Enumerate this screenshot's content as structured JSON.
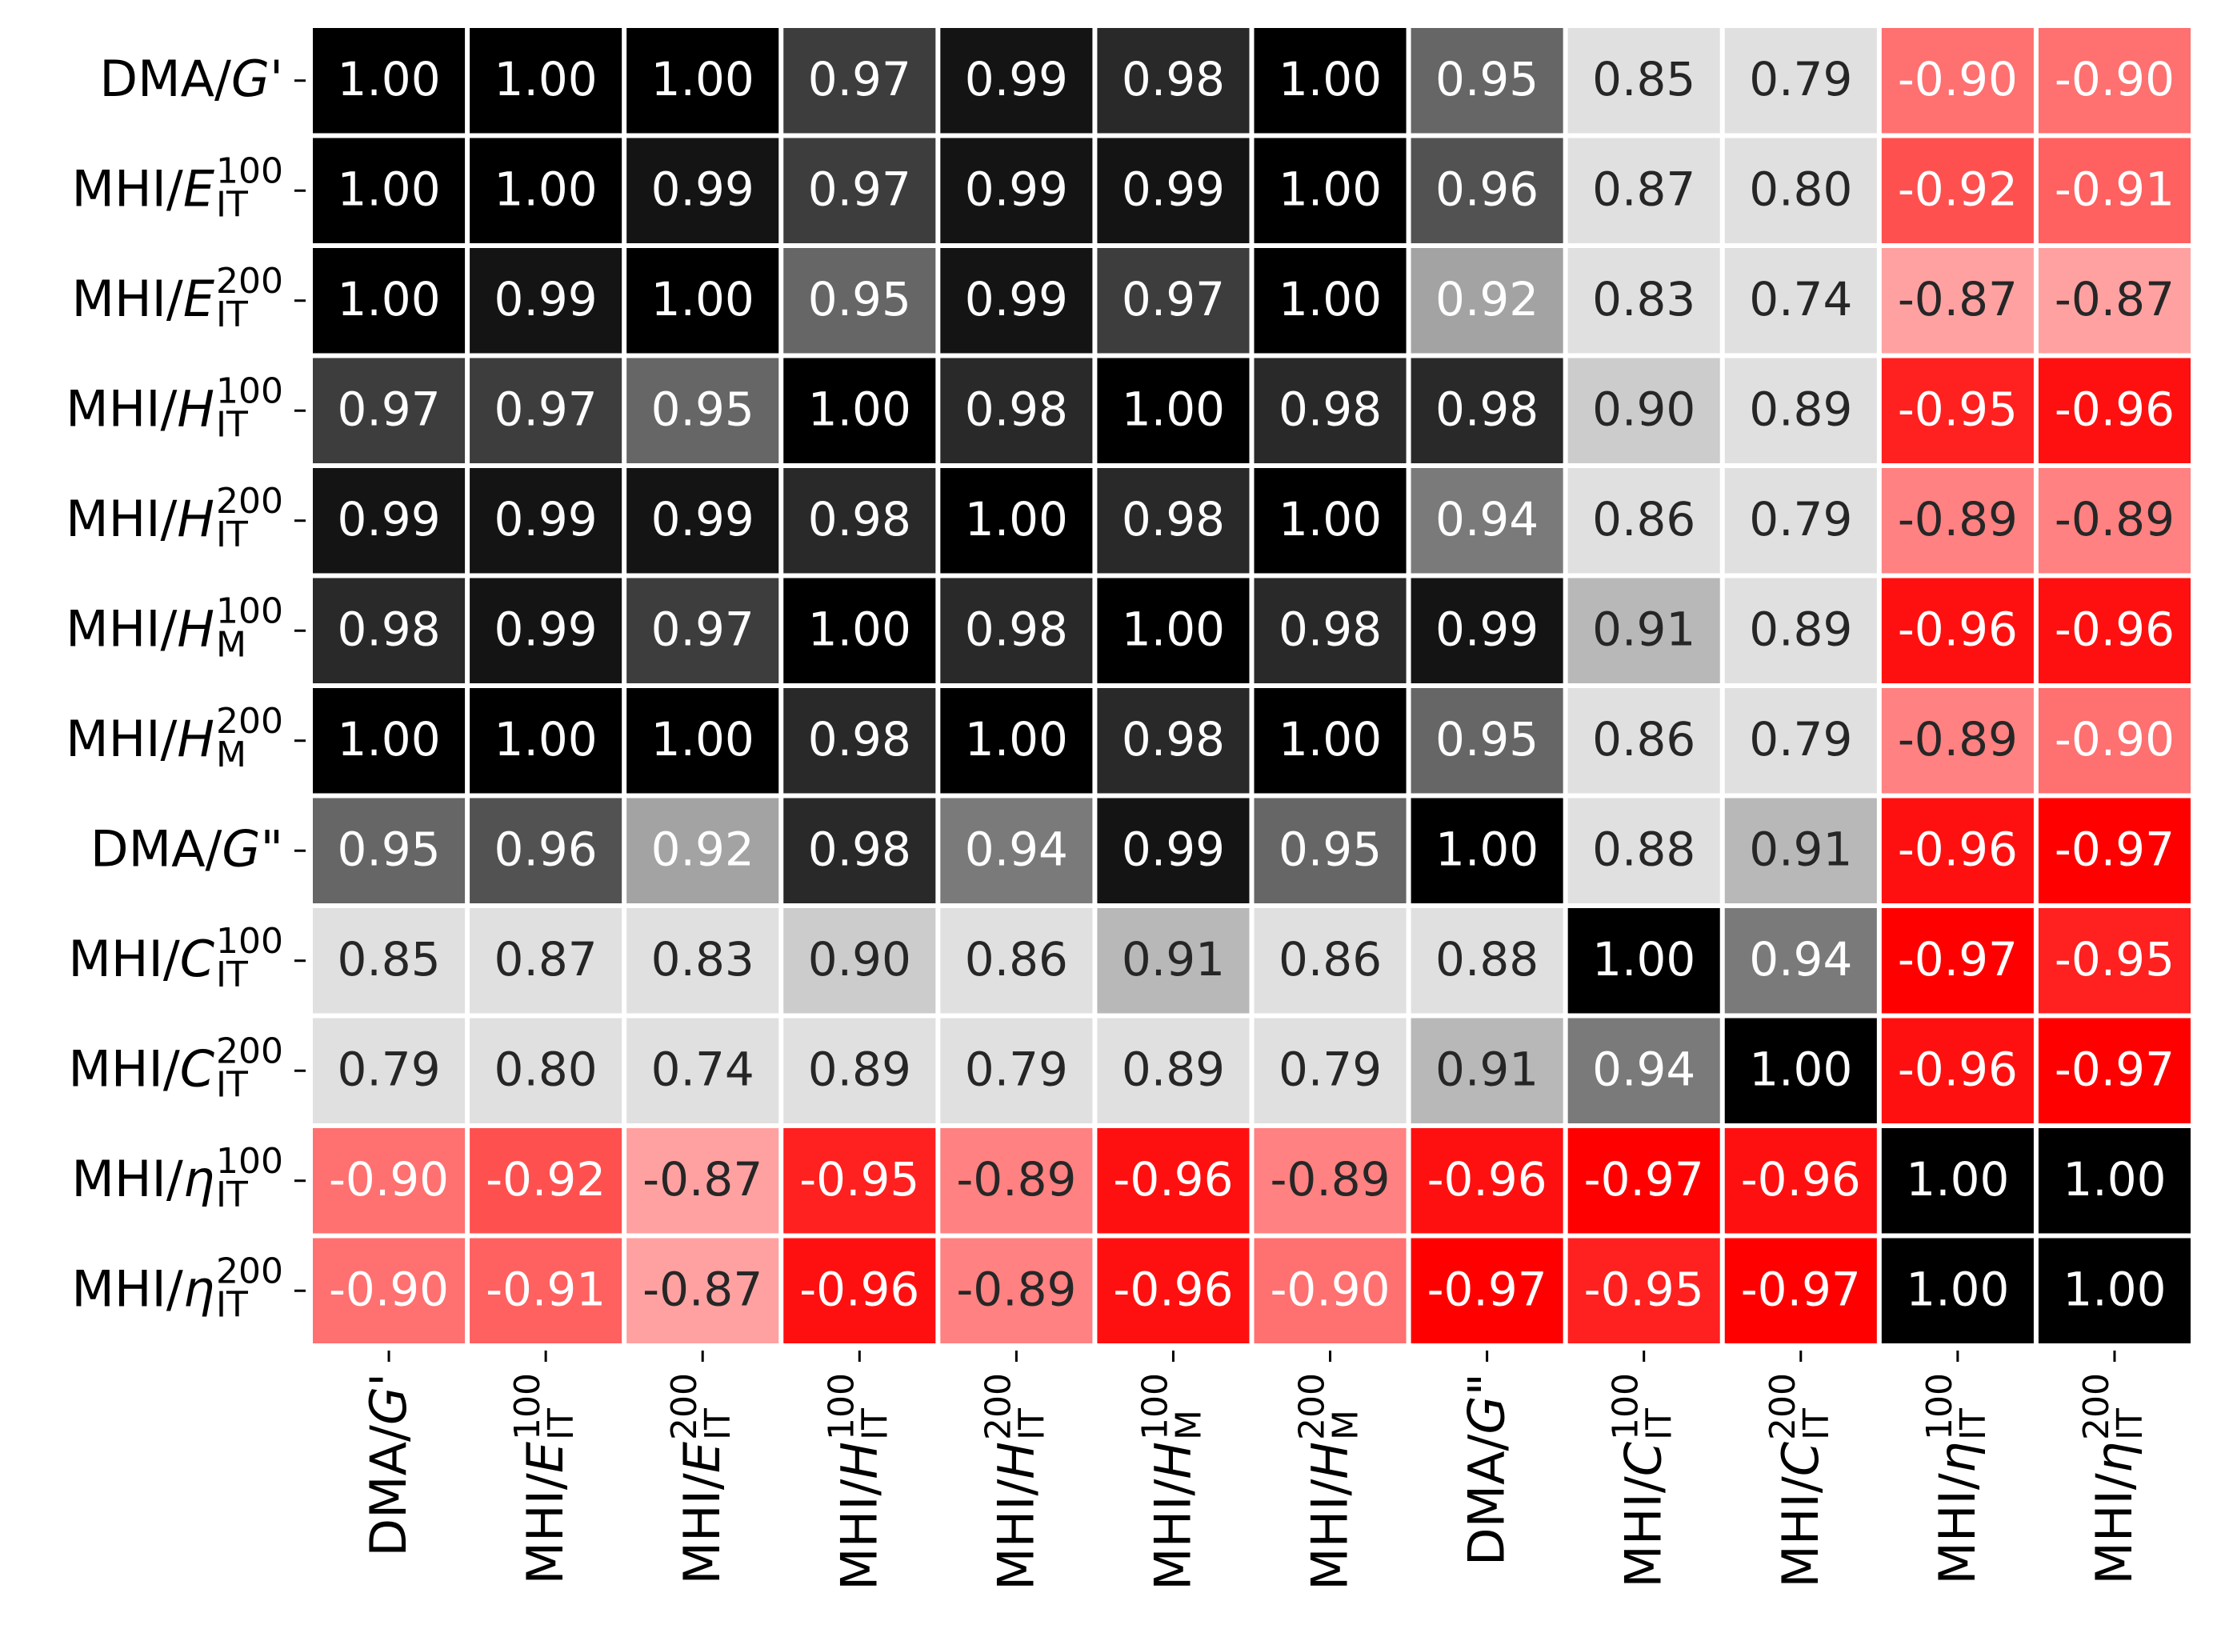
{
  "chart_data": {
    "type": "heatmap",
    "labels": [
      {
        "text": "DMA/",
        "symbol": "G",
        "suffix": "'"
      },
      {
        "text": "MHI/",
        "symbol": "E",
        "sup": "100",
        "sub": "IT"
      },
      {
        "text": "MHI/",
        "symbol": "E",
        "sup": "200",
        "sub": "IT"
      },
      {
        "text": "MHI/",
        "symbol": "H",
        "sup": "100",
        "sub": "IT"
      },
      {
        "text": "MHI/",
        "symbol": "H",
        "sup": "200",
        "sub": "IT"
      },
      {
        "text": "MHI/",
        "symbol": "H",
        "sup": "100",
        "sub": "M"
      },
      {
        "text": "MHI/",
        "symbol": "H",
        "sup": "200",
        "sub": "M"
      },
      {
        "text": "DMA/",
        "symbol": "G",
        "suffix": "\""
      },
      {
        "text": "MHI/",
        "symbol": "C",
        "sup": "100",
        "sub": "IT"
      },
      {
        "text": "MHI/",
        "symbol": "C",
        "sup": "200",
        "sub": "IT"
      },
      {
        "text": "MHI/",
        "symbol": "η",
        "sup": "100",
        "sub": "IT"
      },
      {
        "text": "MHI/",
        "symbol": "η",
        "sup": "200",
        "sub": "IT"
      }
    ],
    "values": [
      [
        1,
        1,
        1,
        0.97,
        0.99,
        0.98,
        1,
        0.95,
        0.85,
        0.79,
        -0.9,
        -0.9
      ],
      [
        1,
        1,
        0.99,
        0.97,
        0.99,
        0.99,
        1,
        0.96,
        0.87,
        0.8,
        -0.92,
        -0.91
      ],
      [
        1,
        0.99,
        1,
        0.95,
        0.99,
        0.97,
        1,
        0.92,
        0.83,
        0.74,
        -0.87,
        -0.87
      ],
      [
        0.97,
        0.97,
        0.95,
        1,
        0.98,
        1,
        0.98,
        0.98,
        0.9,
        0.89,
        -0.95,
        -0.96
      ],
      [
        0.99,
        0.99,
        0.99,
        0.98,
        1,
        0.98,
        1,
        0.94,
        0.86,
        0.79,
        -0.89,
        -0.89
      ],
      [
        0.98,
        0.99,
        0.97,
        1,
        0.98,
        1,
        0.98,
        0.99,
        0.91,
        0.89,
        -0.96,
        -0.96
      ],
      [
        1,
        1,
        1,
        0.98,
        1,
        0.98,
        1,
        0.95,
        0.86,
        0.79,
        -0.89,
        -0.9
      ],
      [
        0.95,
        0.96,
        0.92,
        0.98,
        0.94,
        0.99,
        0.95,
        1,
        0.88,
        0.91,
        -0.96,
        -0.97
      ],
      [
        0.85,
        0.87,
        0.83,
        0.9,
        0.86,
        0.91,
        0.86,
        0.88,
        1,
        0.94,
        -0.97,
        -0.95
      ],
      [
        0.79,
        0.8,
        0.74,
        0.89,
        0.79,
        0.89,
        0.79,
        0.91,
        0.94,
        1,
        -0.96,
        -0.97
      ],
      [
        -0.9,
        -0.92,
        -0.87,
        -0.95,
        -0.89,
        -0.96,
        -0.89,
        -0.96,
        -0.97,
        -0.96,
        1,
        1
      ],
      [
        -0.9,
        -0.91,
        -0.87,
        -0.96,
        -0.89,
        -0.96,
        -0.9,
        -0.97,
        -0.95,
        -0.97,
        1,
        1
      ]
    ],
    "value_labels": [
      [
        "1.00",
        "1.00",
        "1.00",
        "0.97",
        "0.99",
        "0.98",
        "1.00",
        "0.95",
        "0.85",
        "0.79",
        "-0.90",
        "-0.90"
      ],
      [
        "1.00",
        "1.00",
        "0.99",
        "0.97",
        "0.99",
        "0.99",
        "1.00",
        "0.96",
        "0.87",
        "0.80",
        "-0.92",
        "-0.91"
      ],
      [
        "1.00",
        "0.99",
        "1.00",
        "0.95",
        "0.99",
        "0.97",
        "1.00",
        "0.92",
        "0.83",
        "0.74",
        "-0.87",
        "-0.87"
      ],
      [
        "0.97",
        "0.97",
        "0.95",
        "1.00",
        "0.98",
        "1.00",
        "0.98",
        "0.98",
        "0.90",
        "0.89",
        "-0.95",
        "-0.96"
      ],
      [
        "0.99",
        "0.99",
        "0.99",
        "0.98",
        "1.00",
        "0.98",
        "1.00",
        "0.94",
        "0.86",
        "0.79",
        "-0.89",
        "-0.89"
      ],
      [
        "0.98",
        "0.99",
        "0.97",
        "1.00",
        "0.98",
        "1.00",
        "0.98",
        "0.99",
        "0.91",
        "0.89",
        "-0.96",
        "-0.96"
      ],
      [
        "1.00",
        "1.00",
        "1.00",
        "0.98",
        "1.00",
        "0.98",
        "1.00",
        "0.95",
        "0.86",
        "0.79",
        "-0.89",
        "-0.90"
      ],
      [
        "0.95",
        "0.96",
        "0.92",
        "0.98",
        "0.94",
        "0.99",
        "0.95",
        "1.00",
        "0.88",
        "0.91",
        "-0.96",
        "-0.97"
      ],
      [
        "0.85",
        "0.87",
        "0.83",
        "0.90",
        "0.86",
        "0.91",
        "0.86",
        "0.88",
        "1.00",
        "0.94",
        "-0.97",
        "-0.95"
      ],
      [
        "0.79",
        "0.80",
        "0.74",
        "0.89",
        "0.79",
        "0.89",
        "0.79",
        "0.91",
        "0.94",
        "1.00",
        "-0.96",
        "-0.97"
      ],
      [
        "-0.90",
        "-0.92",
        "-0.87",
        "-0.95",
        "-0.89",
        "-0.96",
        "-0.89",
        "-0.96",
        "-0.97",
        "-0.96",
        "1.00",
        "1.00"
      ],
      [
        "-0.90",
        "-0.91",
        "-0.87",
        "-0.96",
        "-0.89",
        "-0.96",
        "-0.90",
        "-0.97",
        "-0.95",
        "-0.97",
        "1.00",
        "1.00"
      ]
    ],
    "high_color": "#000000",
    "low_color": "#ff0000"
  }
}
